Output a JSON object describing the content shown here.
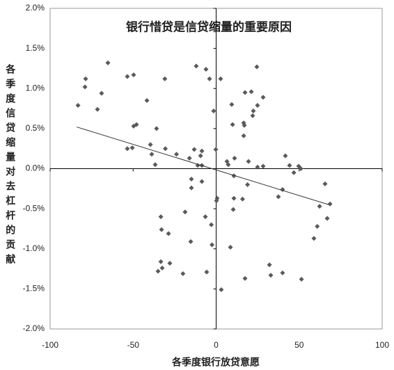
{
  "chart_data": {
    "type": "scatter",
    "title": "银行惜贷是信贷缩量的重要原因",
    "x_label": "各季度银行放贷意愿",
    "y_label": "各季度信贷缩量对去杠杆的贡献",
    "color": "#5a5a5a",
    "x": [
      -83.2,
      -78.6,
      -79.0,
      -71.5,
      -69.0,
      -65.2,
      -53.5,
      -49.7,
      -53.5,
      -50.5,
      -49.7,
      -48.0,
      -41.7,
      -39.6,
      -38.8,
      -36.7,
      -35.9,
      -30.9,
      -30.6,
      -23.9,
      -16.1,
      -13.2,
      -12.0,
      -11.1,
      -9.4,
      -8.6,
      -8.6,
      -6.1,
      -4.0,
      -1.5,
      -0.2,
      2.7,
      6.5,
      7.3,
      9.4,
      9.9,
      11.1,
      16.6,
      17.0,
      16.6,
      17.4,
      19.5,
      21.2,
      22.0,
      22.4,
      24.5,
      24.9,
      24.9,
      28.3,
      28.3,
      41.7,
      44.2,
      46.8,
      49.7,
      51.0,
      -14.9,
      -14.9,
      -8.6,
      0.6,
      0.2,
      10.7,
      10.7,
      10.3,
      15.9,
      18.9,
      37.5,
      40.0,
      -33.3,
      -32.9,
      -28.7,
      -18.7,
      -15.3,
      -6.5,
      -2.9,
      -2.5,
      8.6,
      -35.0,
      -33.3,
      -32.5,
      -27.9,
      -20.0,
      -5.7,
      3.1,
      17.4,
      32.1,
      32.9,
      40.0,
      51.4,
      62.3,
      58.9,
      60.9,
      65.6,
      66.9,
      68.6
    ],
    "values": [
      0.79,
      1.12,
      1.02,
      0.74,
      0.94,
      1.32,
      1.15,
      1.17,
      0.25,
      0.26,
      0.53,
      0.55,
      0.85,
      0.3,
      0.18,
      0.05,
      0.5,
      1.12,
      0.25,
      0.18,
      0.13,
      0.24,
      1.28,
      0.04,
      0.16,
      0.22,
      0.04,
      1.24,
      1.12,
      0.72,
      0.24,
      1.12,
      0.09,
      0.05,
      0.8,
      0.55,
      0.13,
      0.41,
      0.54,
      0.57,
      0.95,
      0.09,
      0.96,
      0.66,
      0.72,
      1.27,
      0.79,
      0.02,
      0.03,
      0.89,
      0.16,
      0.04,
      -0.05,
      0.03,
      0.0,
      -0.13,
      -0.24,
      -0.16,
      -0.37,
      -0.4,
      -0.09,
      -0.37,
      -0.51,
      -0.38,
      -0.2,
      -0.35,
      -0.26,
      -0.6,
      -0.76,
      -0.81,
      -0.54,
      -0.91,
      -0.6,
      -0.7,
      -0.95,
      -0.98,
      -1.28,
      -1.16,
      -1.24,
      -1.18,
      -1.31,
      -1.29,
      -1.51,
      -1.37,
      -1.2,
      -1.33,
      -1.3,
      -1.38,
      -0.47,
      -0.87,
      -0.72,
      -0.19,
      -0.62,
      -0.44
    ],
    "trendline": {
      "x": [
        -84,
        68
      ],
      "values": [
        0.52,
        -0.45
      ]
    },
    "xlim": [
      -100,
      100
    ],
    "xticks": [
      -100,
      -50,
      0,
      50,
      100
    ],
    "ylim": [
      -2.0,
      2.0
    ],
    "yticks": [
      {
        "value": -2.0,
        "label": "-2.0%"
      },
      {
        "value": -1.5,
        "label": "-1.5%"
      },
      {
        "value": -1.0,
        "label": "-1.0%"
      },
      {
        "value": -0.5,
        "label": "-0.5%"
      },
      {
        "value": 0.0,
        "label": "0.0%"
      },
      {
        "value": 0.5,
        "label": "0.5%"
      },
      {
        "value": 1.0,
        "label": "1.0%"
      },
      {
        "value": 1.5,
        "label": "1.5%"
      },
      {
        "value": 2.0,
        "label": "2.0%"
      }
    ]
  }
}
